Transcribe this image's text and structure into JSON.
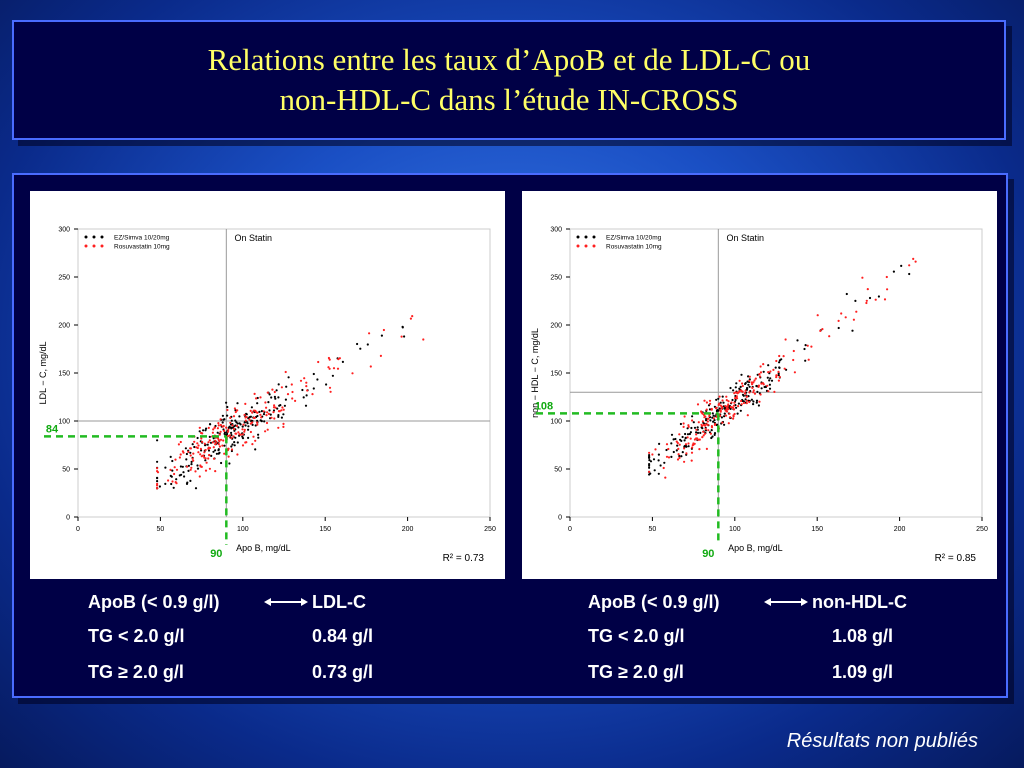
{
  "slide": {
    "title_line1": "Relations entre les taux d’ApoB et de LDL-C ou",
    "title_line2": "non-HDL-C dans l’étude IN-CROSS",
    "footnote": "Résultats non publiés",
    "colors": {
      "title": "#ffff66",
      "panel_bg": "#000046",
      "threshold_line": "#22bb22",
      "series1": "#000000",
      "series2": "#ff2020"
    }
  },
  "chart_data": [
    {
      "type": "scatter",
      "xlabel": "Apo B, mg/dL",
      "ylabel": "LDL − C, mg/dL",
      "xlim": [
        0,
        250
      ],
      "ylim": [
        0,
        300
      ],
      "xticks": [
        "0",
        "50",
        "100",
        "150",
        "200",
        "250"
      ],
      "yticks": [
        "0",
        "50",
        "100",
        "150",
        "200",
        "250",
        "300"
      ],
      "legend_position": "top-left",
      "annotation": "On Statin",
      "reference_lines": {
        "x": 90,
        "y": 100
      },
      "threshold": {
        "x": 90,
        "y": 84,
        "x_label": "90",
        "y_label": "84"
      },
      "r2_label": "R² = 0.73",
      "series": [
        {
          "name": "EZ/Simva 10/20mg",
          "color": "#000000",
          "count": 230
        },
        {
          "name": "Rosuvastatin 10mg",
          "color": "#ff2020",
          "count": 230
        }
      ],
      "fit": {
        "slope": 1.05,
        "intercept": -10,
        "spread": 12
      }
    },
    {
      "type": "scatter",
      "xlabel": "Apo B, mg/dL",
      "ylabel": "non − HDL − C, mg/dL",
      "xlim": [
        0,
        250
      ],
      "ylim": [
        0,
        300
      ],
      "xticks": [
        "0",
        "50",
        "100",
        "150",
        "200",
        "250"
      ],
      "yticks": [
        "0",
        "50",
        "100",
        "150",
        "200",
        "250",
        "300"
      ],
      "legend_position": "top-left",
      "annotation": "On Statin",
      "reference_lines": {
        "x": 90,
        "y": 130
      },
      "threshold": {
        "x": 90,
        "y": 108,
        "x_label": "90",
        "y_label": "108"
      },
      "r2_label": "R² = 0.85",
      "series": [
        {
          "name": "EZ/Simva 10/20mg",
          "color": "#000000",
          "count": 230
        },
        {
          "name": "Rosuvastatin 10mg",
          "color": "#ff2020",
          "count": 230
        }
      ],
      "fit": {
        "slope": 1.3,
        "intercept": -10,
        "spread": 10
      }
    }
  ],
  "stats": {
    "left": {
      "header_left": "ApoB (< 0.9 g/l)",
      "header_right": "LDL-C",
      "row1_label": "TG < 2.0 g/l",
      "row1_value": "0.84 g/l",
      "row2_label": "TG ≥ 2.0 g/l",
      "row2_value": "0.73 g/l"
    },
    "right": {
      "header_left": "ApoB (< 0.9 g/l)",
      "header_right": "non-HDL-C",
      "row1_label": "TG < 2.0 g/l",
      "row1_value": "1.08 g/l",
      "row2_label": "TG ≥ 2.0 g/l",
      "row2_value": "1.09 g/l"
    }
  }
}
